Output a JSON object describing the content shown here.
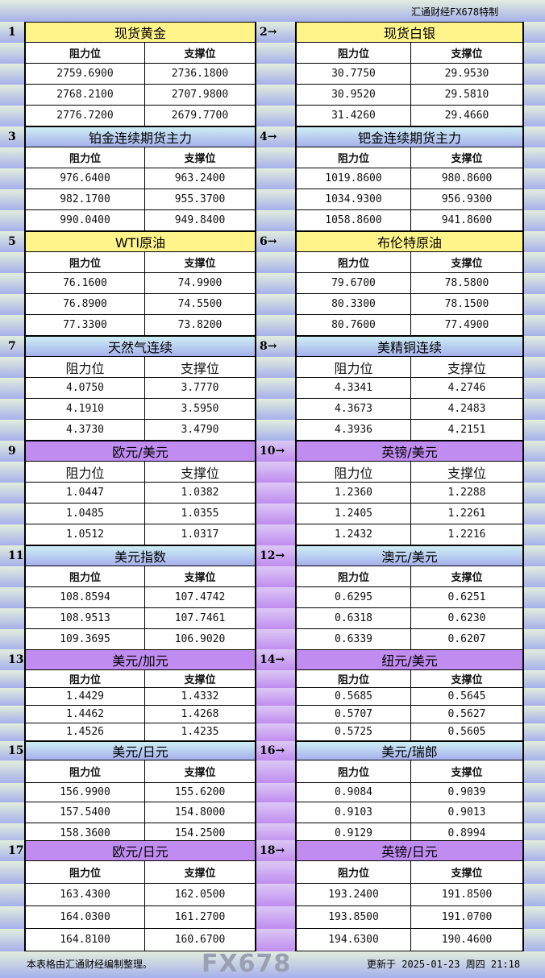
{
  "header": {
    "credit": "汇通财经FX678特制"
  },
  "column_headers": {
    "resistance": "阻力位",
    "support": "支撑位"
  },
  "sections": [
    {
      "index": "1",
      "title": "现货黄金",
      "color": "yellow",
      "rows": [
        [
          "2759.6900",
          "2736.1800"
        ],
        [
          "2768.2100",
          "2707.9800"
        ],
        [
          "2776.7200",
          "2679.7700"
        ]
      ]
    },
    {
      "index": "2→",
      "title": "现货白银",
      "color": "yellow",
      "rows": [
        [
          "30.7750",
          "29.9530"
        ],
        [
          "30.9520",
          "29.5810"
        ],
        [
          "31.4260",
          "29.4660"
        ]
      ]
    },
    {
      "index": "3",
      "title": "铂金连续期货主力",
      "color": "blue",
      "rows": [
        [
          "976.6400",
          "963.2400"
        ],
        [
          "982.1700",
          "955.3700"
        ],
        [
          "990.0400",
          "949.8400"
        ]
      ]
    },
    {
      "index": "4→",
      "title": "钯金连续期货主力",
      "color": "blue",
      "rows": [
        [
          "1019.8600",
          "980.8600"
        ],
        [
          "1034.9300",
          "956.9300"
        ],
        [
          "1058.8600",
          "941.8600"
        ]
      ]
    },
    {
      "index": "5",
      "title": "WTI原油",
      "color": "yellow",
      "rows": [
        [
          "76.1600",
          "74.9900"
        ],
        [
          "76.8900",
          "74.5500"
        ],
        [
          "77.3300",
          "73.8200"
        ]
      ]
    },
    {
      "index": "6→",
      "title": "布伦特原油",
      "color": "yellow",
      "rows": [
        [
          "79.6700",
          "78.5800"
        ],
        [
          "80.3300",
          "78.1500"
        ],
        [
          "80.7600",
          "77.4900"
        ]
      ]
    },
    {
      "index": "7",
      "title": "天然气连续",
      "color": "blue",
      "rows": [
        [
          "4.0750",
          "3.7770"
        ],
        [
          "4.1910",
          "3.5950"
        ],
        [
          "4.3730",
          "3.4790"
        ]
      ]
    },
    {
      "index": "8→",
      "title": "美精铜连续",
      "color": "blue",
      "rows": [
        [
          "4.3341",
          "4.2746"
        ],
        [
          "4.3673",
          "4.2483"
        ],
        [
          "4.3936",
          "4.2151"
        ]
      ]
    },
    {
      "index": "9",
      "title": "欧元/美元",
      "color": "purple",
      "rows": [
        [
          "1.0447",
          "1.0382"
        ],
        [
          "1.0485",
          "1.0355"
        ],
        [
          "1.0512",
          "1.0317"
        ]
      ]
    },
    {
      "index": "10→",
      "title": "英镑/美元",
      "color": "purple",
      "rows": [
        [
          "1.2360",
          "1.2288"
        ],
        [
          "1.2405",
          "1.2261"
        ],
        [
          "1.2432",
          "1.2216"
        ]
      ]
    },
    {
      "index": "11",
      "title": "美元指数",
      "color": "blue",
      "rows": [
        [
          "108.8594",
          "107.4742"
        ],
        [
          "108.9513",
          "107.7461"
        ],
        [
          "109.3695",
          "106.9020"
        ]
      ]
    },
    {
      "index": "12→",
      "title": "澳元/美元",
      "color": "blue",
      "rows": [
        [
          "0.6295",
          "0.6251"
        ],
        [
          "0.6318",
          "0.6230"
        ],
        [
          "0.6339",
          "0.6207"
        ]
      ]
    },
    {
      "index": "13",
      "title": "美元/加元",
      "color": "purple",
      "rows": [
        [
          "1.4429",
          "1.4332"
        ],
        [
          "1.4462",
          "1.4268"
        ],
        [
          "1.4526",
          "1.4235"
        ]
      ]
    },
    {
      "index": "14→",
      "title": "纽元/美元",
      "color": "purple",
      "rows": [
        [
          "0.5685",
          "0.5645"
        ],
        [
          "0.5707",
          "0.5627"
        ],
        [
          "0.5725",
          "0.5605"
        ]
      ]
    },
    {
      "index": "15",
      "title": "美元/日元",
      "color": "blue",
      "rows": [
        [
          "156.9900",
          "155.6200"
        ],
        [
          "157.5400",
          "154.8000"
        ],
        [
          "158.3600",
          "154.2500"
        ]
      ]
    },
    {
      "index": "16→",
      "title": "美元/瑞郎",
      "color": "blue",
      "rows": [
        [
          "0.9084",
          "0.9039"
        ],
        [
          "0.9103",
          "0.9013"
        ],
        [
          "0.9129",
          "0.8994"
        ]
      ]
    },
    {
      "index": "17",
      "title": "欧元/日元",
      "color": "purple",
      "rows": [
        [
          "163.4300",
          "162.0500"
        ],
        [
          "164.0300",
          "161.2700"
        ],
        [
          "164.8100",
          "160.6700"
        ]
      ]
    },
    {
      "index": "18→",
      "title": "英镑/日元",
      "color": "purple",
      "rows": [
        [
          "193.2400",
          "191.8500"
        ],
        [
          "193.8500",
          "191.0700"
        ],
        [
          "194.6300",
          "190.4600"
        ]
      ]
    }
  ],
  "footer": {
    "note": "本表格由汇通财经编制整理。",
    "updated": "更新于 2025-01-23 周四 21:18"
  },
  "watermark": "FX678"
}
